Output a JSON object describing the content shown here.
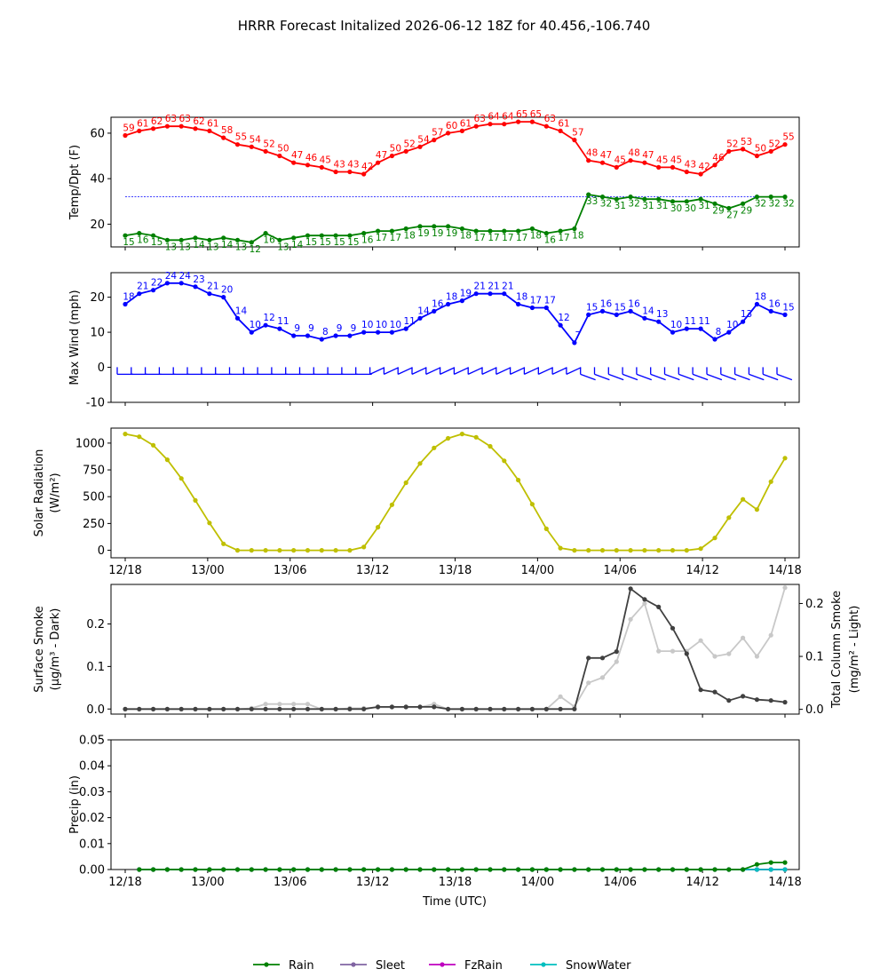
{
  "title": "HRRR Forecast Initalized 2026-06-12 18Z for 40.456,-106.740",
  "xlabel": "Time (UTC)",
  "x_tick_labels": [
    "12/18",
    "13/00",
    "13/06",
    "13/12",
    "13/18",
    "14/00",
    "14/06",
    "14/12",
    "14/18"
  ],
  "legend": [
    "Rain",
    "Sleet",
    "FzRain",
    "SnowWater"
  ],
  "colors": {
    "temp": "#ff0000",
    "dewpoint": "#008000",
    "freezing_line": "#0000ff",
    "wind": "#0000ff",
    "solar": "#bfbf00",
    "surface_smoke": "#404040",
    "column_smoke": "#c8c8c8",
    "rain": "#008000",
    "sleet": "#8064a2",
    "fzrain": "#bf00bf",
    "snowwater": "#00bfbf"
  },
  "chart_data": [
    {
      "type": "line",
      "ylabel": "Temp/Dpt (F)",
      "ylim": [
        10,
        67
      ],
      "yticks": [
        20,
        40,
        60
      ],
      "x_hours": [
        1,
        2,
        3,
        4,
        5,
        6,
        7,
        8,
        9,
        10,
        11,
        12,
        13,
        14,
        15,
        16,
        17,
        18,
        19,
        20,
        21,
        22,
        23,
        24,
        25,
        26,
        27,
        28,
        29,
        30,
        31,
        32,
        33,
        34,
        35,
        36,
        37,
        38,
        39,
        40,
        41,
        42,
        43,
        44,
        45,
        46,
        47,
        48
      ],
      "series": [
        {
          "values": [
            59,
            61,
            62,
            63,
            63,
            62,
            61,
            58,
            55,
            54,
            52,
            50,
            47,
            46,
            45,
            43,
            43,
            42,
            47,
            50,
            52,
            54,
            57,
            60,
            61,
            63,
            64,
            64,
            65,
            65,
            63,
            61,
            57,
            48,
            47,
            45,
            48,
            47,
            45,
            45,
            43,
            42,
            46,
            52,
            53,
            50,
            52,
            55
          ]
        },
        {
          "values": [
            15,
            16,
            15,
            13,
            13,
            14,
            13,
            14,
            13,
            12,
            16,
            13,
            14,
            15,
            15,
            15,
            15,
            16,
            17,
            17,
            18,
            19,
            19,
            19,
            18,
            17,
            17,
            17,
            17,
            18,
            16,
            17,
            18,
            33,
            32,
            31,
            32,
            31,
            31,
            30,
            30,
            31,
            29,
            27,
            29,
            32,
            32,
            32
          ]
        }
      ],
      "reference_line": 32
    },
    {
      "type": "line",
      "ylabel": "Max Wind (mph)",
      "ylim": [
        -10,
        27
      ],
      "yticks": [
        -10,
        0,
        10,
        20
      ],
      "series": [
        {
          "values": [
            18,
            21,
            22,
            24,
            24,
            23,
            21,
            20,
            14,
            10,
            12,
            11,
            9,
            9,
            8,
            9,
            9,
            10,
            10,
            10,
            11,
            14,
            16,
            18,
            19,
            21,
            21,
            21,
            18,
            17,
            17,
            12,
            7,
            15,
            16,
            15,
            16,
            14,
            13,
            10,
            11,
            11,
            8,
            10,
            13,
            18,
            16,
            15
          ]
        }
      ]
    },
    {
      "type": "line",
      "ylabel": "Solar Radiation",
      "ylabel2": "(W/m²)",
      "ylim": [
        -70,
        1140
      ],
      "yticks": [
        0,
        250,
        500,
        750,
        1000
      ],
      "series": [
        {
          "values": [
            1085,
            1060,
            980,
            845,
            670,
            465,
            255,
            60,
            0,
            0,
            0,
            0,
            0,
            0,
            0,
            0,
            0,
            30,
            215,
            425,
            630,
            810,
            955,
            1045,
            1085,
            1055,
            970,
            835,
            655,
            430,
            200,
            20,
            0,
            0,
            0,
            0,
            0,
            0,
            0,
            0,
            0,
            15,
            115,
            305,
            475,
            380,
            640,
            860
          ]
        }
      ]
    },
    {
      "type": "line",
      "ylabel": "Surface Smoke",
      "ylabel2": "(μg/m³ - Dark)",
      "ylabel_right": "Total Column Smoke",
      "ylabel_right2": "(mg/m² - Light)",
      "ylim": [
        -0.012,
        0.293
      ],
      "yticks": [
        0.0,
        0.1,
        0.2
      ],
      "ylim_right": [
        -0.009,
        0.236
      ],
      "yticks_right": [
        0.0,
        0.1,
        0.2
      ],
      "series": [
        {
          "name_hint": "surface",
          "values": [
            0,
            0,
            0,
            0,
            0,
            0,
            0,
            0,
            0,
            0,
            0,
            0,
            0,
            0,
            0,
            0,
            0,
            0,
            0.005,
            0.005,
            0.005,
            0.005,
            0.005,
            0,
            0,
            0,
            0,
            0,
            0,
            0,
            0,
            0,
            0,
            0.12,
            0.12,
            0.135,
            0.283,
            0.258,
            0.24,
            0.19,
            0.13,
            0.045,
            0.04,
            0.02,
            0.03,
            0.022,
            0.02,
            0.016
          ]
        },
        {
          "name_hint": "column",
          "values": [
            0,
            0,
            0,
            0,
            0,
            0,
            0,
            0,
            0,
            0.002,
            0.01,
            0.01,
            0.01,
            0.01,
            0,
            0,
            0.002,
            0.002,
            0.004,
            0.004,
            0.004,
            0.004,
            0.01,
            0,
            0,
            0,
            0,
            0,
            0,
            0,
            0,
            0.024,
            0.005,
            0.05,
            0.06,
            0.09,
            0.17,
            0.2,
            0.11,
            0.11,
            0.11,
            0.13,
            0.1,
            0.105,
            0.135,
            0.1,
            0.14,
            0.23
          ]
        }
      ]
    },
    {
      "type": "line",
      "ylabel": "Precip (in)",
      "ylim": [
        0,
        0.05
      ],
      "yticks": [
        0.0,
        0.01,
        0.02,
        0.03,
        0.04,
        0.05
      ],
      "series": [
        {
          "name": "Rain",
          "values": [
            0,
            0,
            0,
            0,
            0,
            0,
            0,
            0,
            0,
            0,
            0,
            0,
            0,
            0,
            0,
            0,
            0,
            0,
            0,
            0,
            0,
            0,
            0,
            0,
            0,
            0,
            0,
            0,
            0,
            0,
            0,
            0,
            0,
            0,
            0,
            0,
            0,
            0,
            0,
            0,
            0,
            0,
            0,
            0,
            0.002,
            0.0027,
            0.0027
          ]
        },
        {
          "name": "Sleet",
          "values": [
            0,
            0,
            0,
            0,
            0,
            0,
            0,
            0,
            0,
            0,
            0,
            0,
            0,
            0,
            0,
            0,
            0,
            0,
            0,
            0,
            0,
            0,
            0,
            0,
            0,
            0,
            0,
            0,
            0,
            0,
            0,
            0,
            0,
            0,
            0,
            0,
            0,
            0,
            0,
            0,
            0,
            0,
            0,
            0,
            0,
            0,
            0
          ]
        },
        {
          "name": "FzRain",
          "values": [
            0,
            0,
            0,
            0,
            0,
            0,
            0,
            0,
            0,
            0,
            0,
            0,
            0,
            0,
            0,
            0,
            0,
            0,
            0,
            0,
            0,
            0,
            0,
            0,
            0,
            0,
            0,
            0,
            0,
            0,
            0,
            0,
            0,
            0,
            0,
            0,
            0,
            0,
            0,
            0,
            0,
            0,
            0,
            0,
            0,
            0,
            0
          ]
        },
        {
          "name": "SnowWater",
          "values": [
            0,
            0,
            0,
            0,
            0,
            0,
            0,
            0,
            0,
            0,
            0,
            0,
            0,
            0,
            0,
            0,
            0,
            0,
            0,
            0,
            0,
            0,
            0,
            0,
            0,
            0,
            0,
            0,
            0,
            0,
            0,
            0,
            0,
            0,
            0,
            0,
            0,
            0,
            0,
            0,
            0,
            0,
            0,
            0,
            0,
            0,
            0
          ]
        }
      ]
    }
  ]
}
